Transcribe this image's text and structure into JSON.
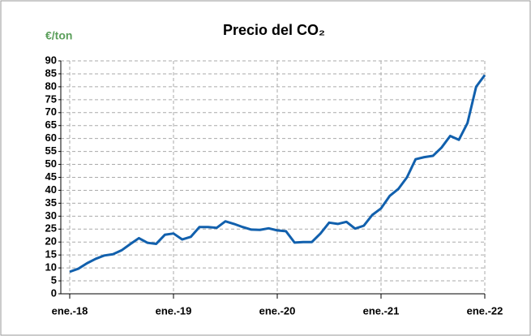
{
  "chart_data": {
    "type": "line",
    "title": "Precio del CO₂",
    "y_label": "€/ton",
    "categories": [
      "ene.-18",
      null,
      null,
      null,
      null,
      null,
      null,
      null,
      null,
      null,
      null,
      null,
      "ene.-19",
      null,
      null,
      null,
      null,
      null,
      null,
      null,
      null,
      null,
      null,
      null,
      "ene.-20",
      null,
      null,
      null,
      null,
      null,
      null,
      null,
      null,
      null,
      null,
      null,
      "ene.-21",
      null,
      null,
      null,
      null,
      null,
      null,
      null,
      null,
      null,
      null,
      null,
      "ene.-22"
    ],
    "series": [
      {
        "name": "CO2",
        "color": "#1160ad",
        "values": [
          8.5,
          9.7,
          11.8,
          13.5,
          14.8,
          15.3,
          16.8,
          19.2,
          21.5,
          19.7,
          19.3,
          22.8,
          23.3,
          21,
          22,
          25.8,
          25.8,
          25.5,
          28,
          27,
          25.8,
          24.8,
          24.7,
          25.3,
          24.5,
          24.2,
          19.8,
          20,
          20,
          23.3,
          27.5,
          27,
          27.8,
          25.2,
          26.3,
          30.5,
          33,
          37.8,
          40.5,
          45,
          52,
          52.8,
          53.3,
          56.5,
          61,
          59.5,
          66,
          80,
          84.5
        ]
      }
    ],
    "ylim": [
      0,
      90
    ],
    "yticks": [
      0,
      5,
      10,
      15,
      20,
      25,
      30,
      35,
      40,
      45,
      50,
      55,
      60,
      65,
      70,
      75,
      80,
      85,
      90
    ],
    "grid": true
  }
}
